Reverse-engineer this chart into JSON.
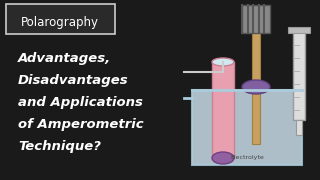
{
  "bg_color": "#1a1a1a",
  "title_box_text": "Polarography",
  "title_box_color": "#2a2a2a",
  "title_box_edge": "#cccccc",
  "main_text_lines": [
    "Advantages,",
    "Disadvantages",
    "and Applications",
    "of Amperometric",
    "Technique?"
  ],
  "main_text_color": "#ffffff",
  "electrolyte_label": "Electrolyte",
  "beaker_color": "#d0e8f0",
  "beaker_edge": "#aaccdd",
  "liquid_color": "#c8dce8",
  "tube_pink_color": "#e8a0b0",
  "tube_purple_bottom": "#9060a0",
  "tube_edge": "#cc8090",
  "electrode_body": "#c8a060",
  "electrode_body_edge": "#a08040",
  "electrode_head_color": "#888888",
  "electrode_head_edge": "#555555",
  "electrode_disk_color": "#8060a0",
  "electrode_disk_edge": "#604080",
  "syringe_color": "#dddddd",
  "syringe_edge": "#999999",
  "syringe_line_color": "#aaaaaa",
  "connector_color": "#cccccc",
  "stripe_color": "#555555"
}
